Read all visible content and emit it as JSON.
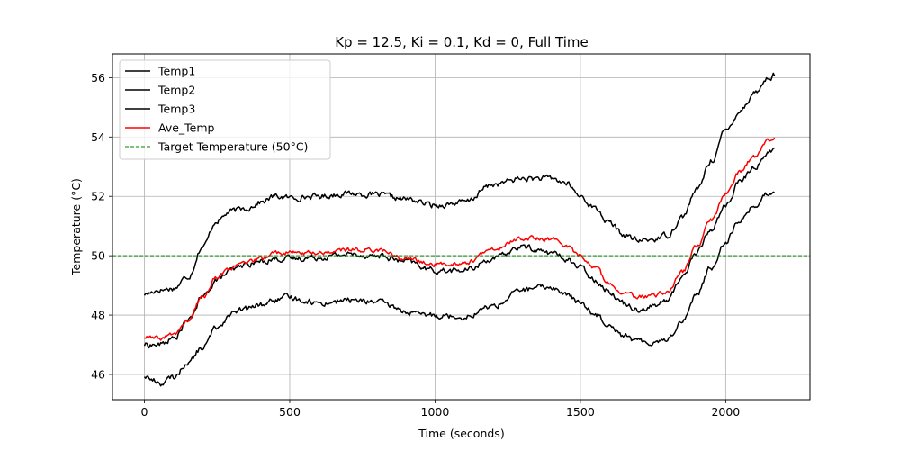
{
  "chart_data": {
    "type": "line",
    "title": "Kp = 12.5, Ki = 0.1, Kd = 0, Full Time",
    "xlabel": "Time (seconds)",
    "ylabel": "Temperature (°C)",
    "xlim": [
      -110,
      2290
    ],
    "ylim": [
      45.15,
      56.8
    ],
    "xticks": [
      0,
      500,
      1000,
      1500,
      2000
    ],
    "yticks": [
      46,
      48,
      50,
      52,
      54,
      56
    ],
    "xtick_labels": [
      "0",
      "500",
      "1000",
      "1500",
      "2000"
    ],
    "ytick_labels": [
      "46",
      "48",
      "50",
      "52",
      "54",
      "56"
    ],
    "grid": true,
    "legend_position": "top-left",
    "noise_amplitude": 0.1,
    "series": [
      {
        "name": "Temp1",
        "color": "#000000",
        "style": "solid",
        "points": [
          [
            0,
            48.7
          ],
          [
            50,
            48.85
          ],
          [
            100,
            48.9
          ],
          [
            150,
            49.3
          ],
          [
            200,
            50.3
          ],
          [
            250,
            51.2
          ],
          [
            300,
            51.5
          ],
          [
            350,
            51.6
          ],
          [
            400,
            51.8
          ],
          [
            450,
            52.0
          ],
          [
            500,
            51.95
          ],
          [
            600,
            52.0
          ],
          [
            700,
            52.1
          ],
          [
            800,
            52.05
          ],
          [
            900,
            51.9
          ],
          [
            1000,
            51.7
          ],
          [
            1100,
            51.8
          ],
          [
            1200,
            52.4
          ],
          [
            1300,
            52.6
          ],
          [
            1400,
            52.6
          ],
          [
            1450,
            52.45
          ],
          [
            1500,
            52.0
          ],
          [
            1550,
            51.6
          ],
          [
            1600,
            51.1
          ],
          [
            1650,
            50.7
          ],
          [
            1700,
            50.5
          ],
          [
            1750,
            50.55
          ],
          [
            1800,
            50.7
          ],
          [
            1850,
            51.3
          ],
          [
            1900,
            52.2
          ],
          [
            1950,
            53.2
          ],
          [
            2000,
            54.2
          ],
          [
            2050,
            54.9
          ],
          [
            2100,
            55.5
          ],
          [
            2150,
            56.0
          ],
          [
            2170,
            56.1
          ]
        ]
      },
      {
        "name": "Temp2",
        "color": "#000000",
        "style": "solid",
        "points": [
          [
            0,
            47.0
          ],
          [
            50,
            47.0
          ],
          [
            100,
            47.2
          ],
          [
            150,
            47.8
          ],
          [
            200,
            48.6
          ],
          [
            250,
            49.2
          ],
          [
            300,
            49.5
          ],
          [
            350,
            49.7
          ],
          [
            400,
            49.8
          ],
          [
            450,
            49.9
          ],
          [
            500,
            49.9
          ],
          [
            600,
            49.95
          ],
          [
            700,
            50.05
          ],
          [
            800,
            50.0
          ],
          [
            900,
            49.8
          ],
          [
            1000,
            49.5
          ],
          [
            1100,
            49.5
          ],
          [
            1200,
            49.9
          ],
          [
            1300,
            50.3
          ],
          [
            1400,
            50.1
          ],
          [
            1450,
            49.9
          ],
          [
            1500,
            49.6
          ],
          [
            1550,
            49.2
          ],
          [
            1600,
            48.8
          ],
          [
            1650,
            48.4
          ],
          [
            1700,
            48.2
          ],
          [
            1750,
            48.3
          ],
          [
            1800,
            48.5
          ],
          [
            1850,
            49.3
          ],
          [
            1900,
            50.1
          ],
          [
            1950,
            50.9
          ],
          [
            2000,
            51.7
          ],
          [
            2050,
            52.5
          ],
          [
            2100,
            53.0
          ],
          [
            2150,
            53.5
          ],
          [
            2170,
            53.6
          ]
        ]
      },
      {
        "name": "Temp3",
        "color": "#000000",
        "style": "solid",
        "points": [
          [
            0,
            45.95
          ],
          [
            30,
            45.8
          ],
          [
            60,
            45.7
          ],
          [
            100,
            45.9
          ],
          [
            150,
            46.4
          ],
          [
            200,
            46.9
          ],
          [
            250,
            47.6
          ],
          [
            300,
            48.05
          ],
          [
            350,
            48.2
          ],
          [
            400,
            48.35
          ],
          [
            450,
            48.5
          ],
          [
            500,
            48.6
          ],
          [
            550,
            48.5
          ],
          [
            600,
            48.4
          ],
          [
            700,
            48.5
          ],
          [
            800,
            48.45
          ],
          [
            850,
            48.3
          ],
          [
            900,
            48.1
          ],
          [
            950,
            48.0
          ],
          [
            1000,
            48.0
          ],
          [
            1100,
            47.95
          ],
          [
            1200,
            48.3
          ],
          [
            1300,
            48.85
          ],
          [
            1400,
            48.95
          ],
          [
            1450,
            48.7
          ],
          [
            1500,
            48.4
          ],
          [
            1550,
            48.05
          ],
          [
            1600,
            47.7
          ],
          [
            1650,
            47.3
          ],
          [
            1700,
            47.1
          ],
          [
            1750,
            47.1
          ],
          [
            1800,
            47.2
          ],
          [
            1850,
            47.8
          ],
          [
            1900,
            48.7
          ],
          [
            1950,
            49.6
          ],
          [
            2000,
            50.5
          ],
          [
            2050,
            51.2
          ],
          [
            2100,
            51.7
          ],
          [
            2150,
            52.1
          ],
          [
            2170,
            52.2
          ]
        ]
      },
      {
        "name": "Ave_Temp",
        "color": "#ff0000",
        "style": "solid",
        "points": [
          [
            0,
            47.25
          ],
          [
            50,
            47.2
          ],
          [
            100,
            47.35
          ],
          [
            150,
            47.8
          ],
          [
            200,
            48.6
          ],
          [
            250,
            49.3
          ],
          [
            300,
            49.6
          ],
          [
            350,
            49.75
          ],
          [
            400,
            49.9
          ],
          [
            450,
            50.1
          ],
          [
            500,
            50.1
          ],
          [
            600,
            50.1
          ],
          [
            700,
            50.2
          ],
          [
            800,
            50.2
          ],
          [
            900,
            49.9
          ],
          [
            1000,
            49.7
          ],
          [
            1100,
            49.75
          ],
          [
            1200,
            50.2
          ],
          [
            1300,
            50.6
          ],
          [
            1400,
            50.55
          ],
          [
            1450,
            50.35
          ],
          [
            1500,
            50.0
          ],
          [
            1550,
            49.6
          ],
          [
            1600,
            49.1
          ],
          [
            1650,
            48.75
          ],
          [
            1700,
            48.6
          ],
          [
            1750,
            48.65
          ],
          [
            1800,
            48.8
          ],
          [
            1850,
            49.45
          ],
          [
            1900,
            50.3
          ],
          [
            1950,
            51.2
          ],
          [
            2000,
            52.1
          ],
          [
            2050,
            52.85
          ],
          [
            2100,
            53.35
          ],
          [
            2150,
            53.9
          ],
          [
            2170,
            54.0
          ]
        ]
      },
      {
        "name": "Target Temperature (50°C)",
        "color": "#008000",
        "style": "dashed",
        "points": [
          [
            -110,
            50
          ],
          [
            2290,
            50
          ]
        ]
      }
    ]
  }
}
